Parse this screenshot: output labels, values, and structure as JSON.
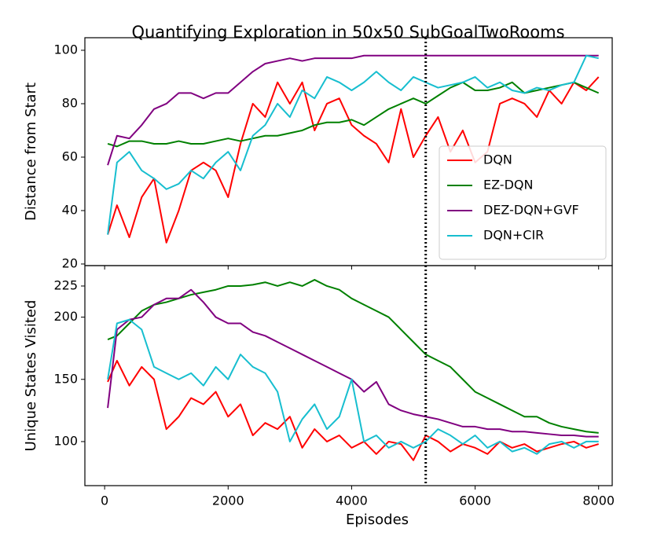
{
  "chart_data": [
    {
      "type": "line",
      "title": "Quantifying Exploration in 50x50 SubGoalTwoRooms",
      "ylabel": "Distance from Start",
      "x": [
        50,
        200,
        400,
        600,
        800,
        1000,
        1200,
        1400,
        1600,
        1800,
        2000,
        2200,
        2400,
        2600,
        2800,
        3000,
        3200,
        3400,
        3600,
        3800,
        4000,
        4200,
        4400,
        4600,
        4800,
        5000,
        5200,
        5400,
        5600,
        5800,
        6000,
        6200,
        6400,
        6600,
        6800,
        7000,
        7200,
        7400,
        7600,
        7800,
        8000
      ],
      "xlim": [
        -320,
        8220
      ],
      "ylim": [
        19.4,
        104.7
      ],
      "yticks": [
        20,
        40,
        60,
        80,
        100
      ],
      "vline": 5200,
      "legend": "lower right",
      "series": [
        {
          "name": "DQN",
          "color": "#ff0000",
          "values": [
            31,
            42,
            30,
            45,
            52,
            28,
            40,
            55,
            58,
            55,
            45,
            65,
            80,
            75,
            88,
            80,
            88,
            70,
            80,
            82,
            72,
            68,
            65,
            58,
            78,
            60,
            68,
            75,
            62,
            70,
            58,
            62,
            80,
            82,
            80,
            75,
            85,
            80,
            88,
            85,
            90
          ]
        },
        {
          "name": "EZ-DQN",
          "color": "#008000",
          "values": [
            65,
            64,
            66,
            66,
            65,
            65,
            66,
            65,
            65,
            66,
            67,
            66,
            67,
            68,
            68,
            69,
            70,
            72,
            73,
            73,
            74,
            72,
            75,
            78,
            80,
            82,
            80,
            83,
            86,
            88,
            85,
            85,
            86,
            88,
            84,
            85,
            86,
            87,
            88,
            86,
            84
          ]
        },
        {
          "name": "DEZ-DQN+GVF",
          "color": "#800080",
          "values": [
            57,
            68,
            67,
            72,
            78,
            80,
            84,
            84,
            82,
            84,
            84,
            88,
            92,
            95,
            96,
            97,
            96,
            97,
            97,
            97,
            97,
            98,
            98,
            98,
            98,
            98,
            98,
            98,
            98,
            98,
            98,
            98,
            98,
            98,
            98,
            98,
            98,
            98,
            98,
            98,
            98
          ]
        },
        {
          "name": "DQN+CIR",
          "color": "#17becf",
          "values": [
            31,
            58,
            62,
            55,
            52,
            48,
            50,
            55,
            52,
            58,
            62,
            55,
            68,
            72,
            80,
            75,
            85,
            82,
            90,
            88,
            85,
            88,
            92,
            88,
            85,
            90,
            88,
            86,
            87,
            88,
            90,
            86,
            88,
            85,
            84,
            86,
            85,
            87,
            88,
            98,
            97
          ]
        }
      ]
    },
    {
      "type": "line",
      "ylabel": "Unique States Visited",
      "xlabel": "Episodes",
      "x": [
        50,
        200,
        400,
        600,
        800,
        1000,
        1200,
        1400,
        1600,
        1800,
        2000,
        2200,
        2400,
        2600,
        2800,
        3000,
        3200,
        3400,
        3600,
        3800,
        4000,
        4200,
        4400,
        4600,
        4800,
        5000,
        5200,
        5400,
        5600,
        5800,
        6000,
        6200,
        6400,
        6600,
        6800,
        7000,
        7200,
        7400,
        7600,
        7800,
        8000
      ],
      "xlim": [
        -320,
        8220
      ],
      "xticks": [
        0,
        2000,
        4000,
        6000,
        8000
      ],
      "ylim": [
        64.6,
        241.4
      ],
      "yticks": [
        100,
        150,
        200,
        225
      ],
      "vline": 5200,
      "series": [
        {
          "color": "#ff0000",
          "values": [
            148,
            165,
            145,
            160,
            150,
            110,
            120,
            135,
            130,
            140,
            120,
            130,
            105,
            115,
            110,
            120,
            95,
            110,
            100,
            105,
            95,
            100,
            90,
            100,
            98,
            85,
            105,
            100,
            92,
            98,
            95,
            90,
            100,
            95,
            98,
            92,
            95,
            98,
            100,
            95,
            98
          ]
        },
        {
          "color": "#008000",
          "values": [
            182,
            185,
            195,
            205,
            210,
            212,
            215,
            218,
            220,
            222,
            225,
            225,
            226,
            228,
            225,
            228,
            225,
            230,
            225,
            222,
            215,
            210,
            205,
            200,
            190,
            180,
            170,
            165,
            160,
            150,
            140,
            135,
            130,
            125,
            120,
            120,
            115,
            112,
            110,
            108,
            107
          ]
        },
        {
          "color": "#800080",
          "values": [
            127,
            190,
            198,
            200,
            210,
            215,
            215,
            222,
            212,
            200,
            195,
            195,
            188,
            185,
            180,
            175,
            170,
            165,
            160,
            155,
            150,
            140,
            148,
            130,
            125,
            122,
            120,
            118,
            115,
            112,
            112,
            110,
            110,
            108,
            108,
            107,
            106,
            105,
            105,
            104,
            104
          ]
        },
        {
          "color": "#17becf",
          "values": [
            150,
            195,
            198,
            190,
            160,
            155,
            150,
            155,
            145,
            160,
            150,
            170,
            160,
            155,
            140,
            100,
            118,
            130,
            110,
            120,
            150,
            100,
            105,
            95,
            100,
            95,
            100,
            110,
            105,
            98,
            105,
            95,
            100,
            92,
            95,
            90,
            98,
            100,
            95,
            100,
            100
          ]
        }
      ]
    }
  ]
}
